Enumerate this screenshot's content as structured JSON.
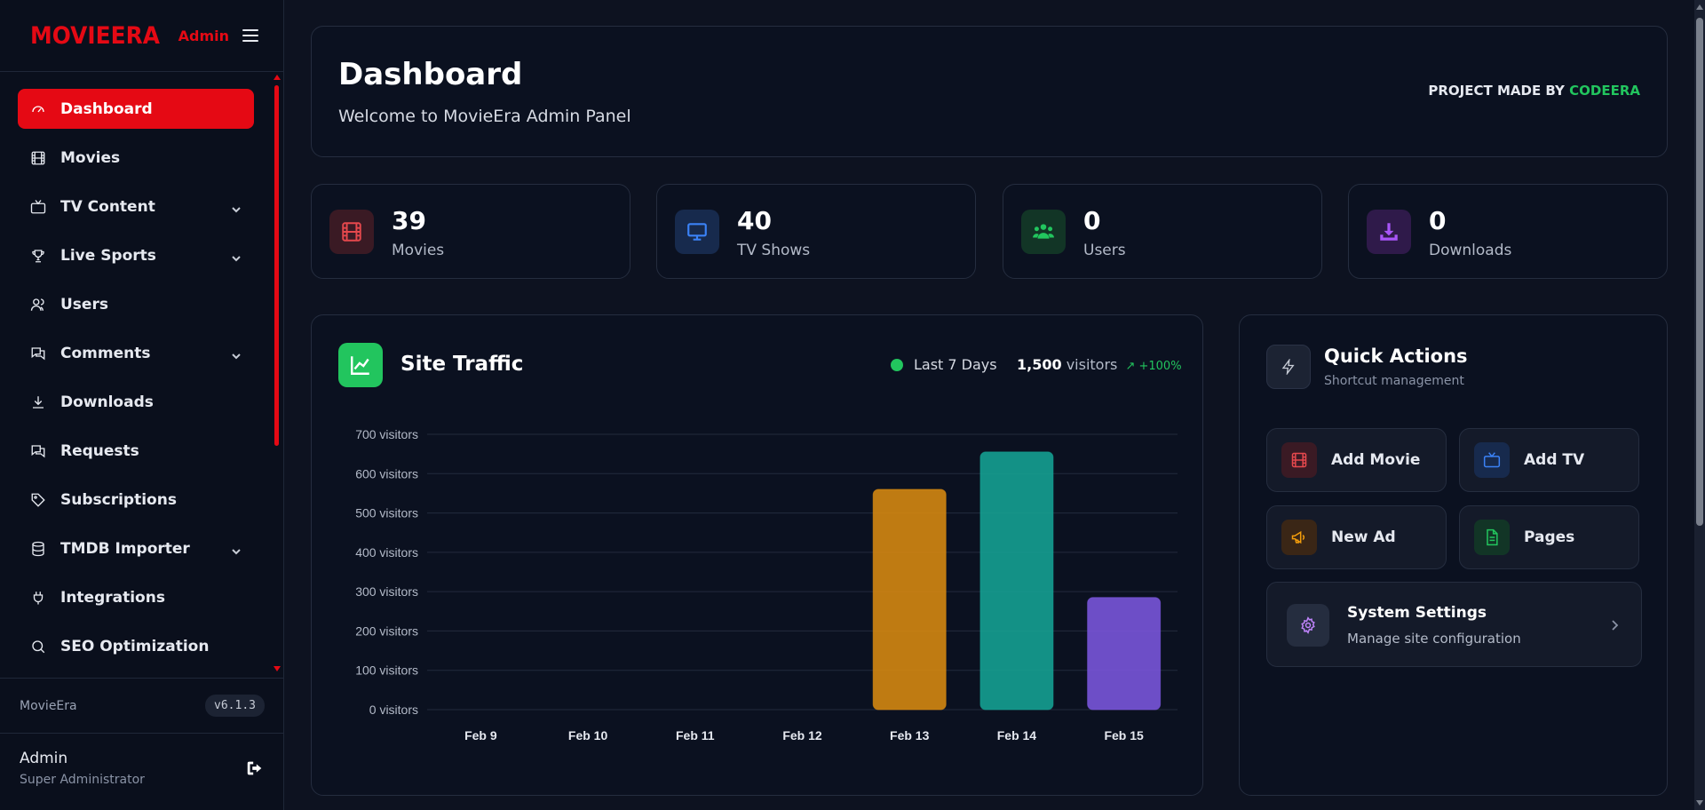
{
  "brand": {
    "logo": "MOVIEERA",
    "tag": "Admin"
  },
  "sidebar": {
    "items": [
      {
        "label": "Dashboard",
        "icon": "gauge-icon"
      },
      {
        "label": "Movies",
        "icon": "film-icon"
      },
      {
        "label": "TV Content",
        "icon": "tv-icon"
      },
      {
        "label": "Live Sports",
        "icon": "trophy-icon"
      },
      {
        "label": "Users",
        "icon": "users-icon"
      },
      {
        "label": "Comments",
        "icon": "comments-icon"
      },
      {
        "label": "Downloads",
        "icon": "download-icon"
      },
      {
        "label": "Requests",
        "icon": "requests-icon"
      },
      {
        "label": "Subscriptions",
        "icon": "tag-icon"
      },
      {
        "label": "TMDB Importer",
        "icon": "database-icon"
      },
      {
        "label": "Integrations",
        "icon": "plug-icon"
      },
      {
        "label": "SEO Optimization",
        "icon": "search-icon"
      }
    ],
    "app_name": "MovieEra",
    "version": "v6.1.3",
    "user_name": "Admin",
    "user_role": "Super Administrator"
  },
  "header": {
    "title": "Dashboard",
    "subtitle": "Welcome to MovieEra Admin Panel",
    "credit_prefix": "PROJECT MADE BY",
    "credit_name": "CODEERA"
  },
  "stats": [
    {
      "value": "39",
      "label": "Movies",
      "icon": "film-icon",
      "color": "#e5484d"
    },
    {
      "value": "40",
      "label": "TV Shows",
      "icon": "monitor-icon",
      "color": "#3b82f6"
    },
    {
      "value": "0",
      "label": "Users",
      "icon": "users-icon",
      "color": "#22c55e"
    },
    {
      "value": "0",
      "label": "Downloads",
      "icon": "download-icon",
      "color": "#a855f7"
    }
  ],
  "traffic": {
    "title": "Site Traffic",
    "range": "Last 7 Days",
    "visitors_count": "1,500",
    "visitors_word": "visitors",
    "growth": "↗ +100%"
  },
  "chart_data": {
    "type": "bar",
    "categories": [
      "Feb 9",
      "Feb 10",
      "Feb 11",
      "Feb 12",
      "Feb 13",
      "Feb 14",
      "Feb 15"
    ],
    "values": [
      0,
      0,
      0,
      0,
      560,
      655,
      285
    ],
    "colors": [
      "#f59e0b",
      "#f59e0b",
      "#f59e0b",
      "#f59e0b",
      "#d88a10",
      "#14a394",
      "#7b57de"
    ],
    "y_ticks": [
      "0 visitors",
      "100 visitors",
      "200 visitors",
      "300 visitors",
      "400 visitors",
      "500 visitors",
      "600 visitors",
      "700 visitors"
    ],
    "ylim": [
      0,
      700
    ],
    "grid": true
  },
  "quick_actions": {
    "title": "Quick Actions",
    "subtitle": "Shortcut management",
    "buttons": [
      {
        "label": "Add Movie",
        "icon": "film-icon",
        "color": "#e5484d"
      },
      {
        "label": "Add TV",
        "icon": "tv-icon",
        "color": "#3b82f6"
      },
      {
        "label": "New Ad",
        "icon": "megaphone-icon",
        "color": "#f59e0b"
      },
      {
        "label": "Pages",
        "icon": "document-icon",
        "color": "#22c55e"
      }
    ],
    "settings_title": "System Settings",
    "settings_sub": "Manage site configuration"
  }
}
